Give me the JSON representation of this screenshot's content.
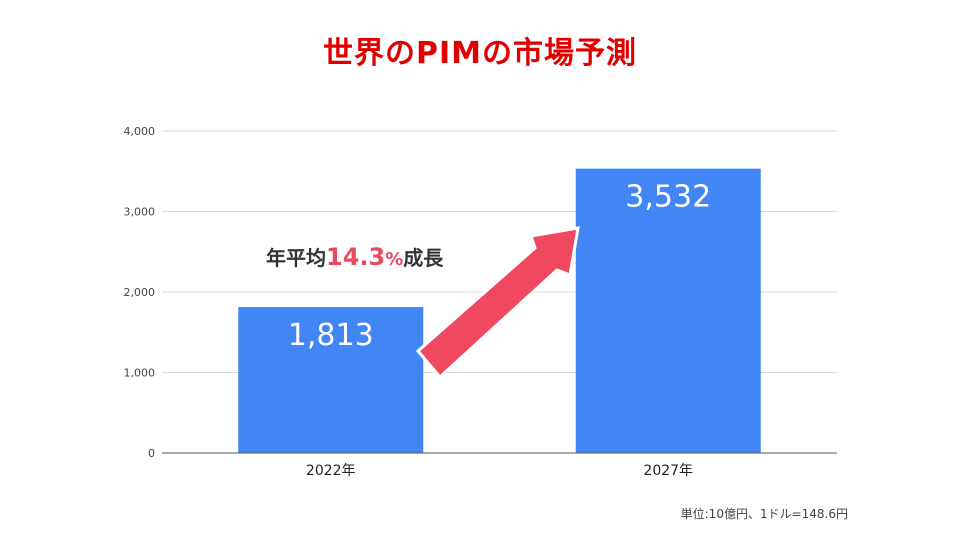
{
  "title": "世界のPIMの市場予測",
  "annotation": {
    "prefix": "年平均",
    "value": "14.3",
    "unit": "%",
    "suffix": "成長"
  },
  "note": "単位:10億円、1ドル=148.6円",
  "colors": {
    "title": "#e00000",
    "bar": "#4285f4",
    "arrow": "#f0485e",
    "growth": "#e84a5f"
  },
  "chart_data": {
    "type": "bar",
    "categories": [
      "2022年",
      "2027年"
    ],
    "values": [
      1813,
      3532
    ],
    "value_labels": [
      "1,813",
      "3,532"
    ],
    "ylim": [
      0,
      4000
    ],
    "yticks": [
      0,
      1000,
      2000,
      3000,
      4000
    ],
    "ytick_labels": [
      "0",
      "1,000",
      "2,000",
      "3,000",
      "4,000"
    ],
    "grid": true,
    "legend": "none"
  }
}
